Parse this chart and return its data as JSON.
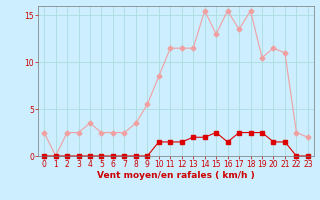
{
  "x": [
    0,
    1,
    2,
    3,
    4,
    5,
    6,
    7,
    8,
    9,
    10,
    11,
    12,
    13,
    14,
    15,
    16,
    17,
    18,
    19,
    20,
    21,
    22,
    23
  ],
  "rafales": [
    2.5,
    0,
    2.5,
    2.5,
    3.5,
    2.5,
    2.5,
    2.5,
    3.5,
    5.5,
    8.5,
    11.5,
    11.5,
    11.5,
    15.5,
    13.0,
    15.5,
    13.5,
    15.5,
    10.5,
    11.5,
    11.0,
    2.5,
    2.0
  ],
  "moyen": [
    0,
    0,
    0,
    0,
    0,
    0,
    0,
    0,
    0,
    0,
    1.5,
    1.5,
    1.5,
    2.0,
    2.0,
    2.5,
    1.5,
    2.5,
    2.5,
    2.5,
    1.5,
    1.5,
    0,
    0
  ],
  "color_rafales": "#f0a0a0",
  "color_moyen": "#dd0000",
  "bg_color": "#cceeff",
  "grid_color": "#aadddd",
  "xlabel": "Vent moyen/en rafales ( km/h )",
  "ylim": [
    0,
    16
  ],
  "yticks": [
    0,
    5,
    10,
    15
  ],
  "xticks": [
    0,
    1,
    2,
    3,
    4,
    5,
    6,
    7,
    8,
    9,
    10,
    11,
    12,
    13,
    14,
    15,
    16,
    17,
    18,
    19,
    20,
    21,
    22,
    23
  ],
  "marker_rafales": "D",
  "marker_moyen": "s",
  "marker_size_rafales": 2.5,
  "marker_size_moyen": 2.5,
  "linewidth": 0.8,
  "tick_fontsize": 5.5,
  "xlabel_fontsize": 6.5
}
